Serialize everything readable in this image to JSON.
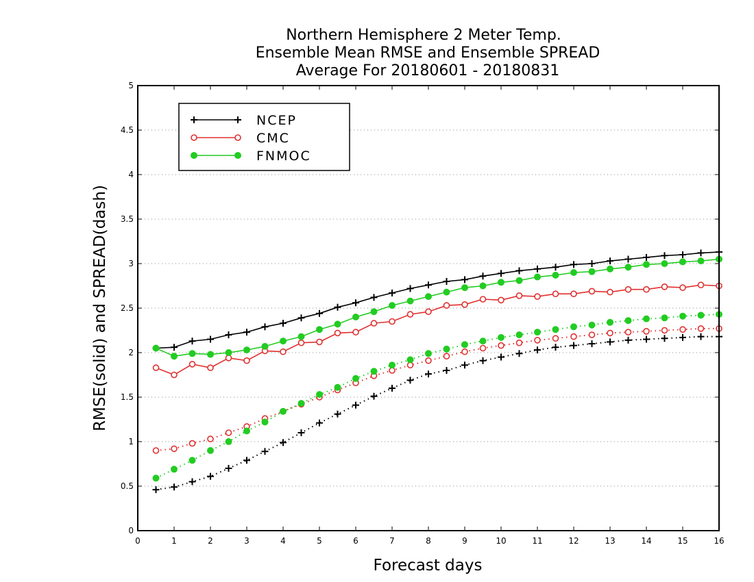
{
  "chart_data": {
    "type": "line",
    "title_lines": [
      "Northern Hemisphere 2 Meter Temp.",
      "Ensemble Mean RMSE and Ensemble SPREAD",
      "Average For 20180601 - 20180831"
    ],
    "xlabel": "Forecast days",
    "ylabel": "RMSE(solid) and SPREAD(dash)",
    "xlim": [
      0,
      16
    ],
    "ylim": [
      0,
      5
    ],
    "x_ticks": [
      0,
      1,
      2,
      3,
      4,
      5,
      6,
      7,
      8,
      9,
      10,
      11,
      12,
      13,
      14,
      15,
      16
    ],
    "y_ticks": [
      0,
      0.5,
      1,
      1.5,
      2,
      2.5,
      3,
      3.5,
      4,
      4.5,
      5
    ],
    "y_tick_labels": [
      "0",
      "0.5",
      "1",
      "1.5",
      "2",
      "2.5",
      "3",
      "3.5",
      "4",
      "4.5",
      "5"
    ],
    "grid": "horizontal dotted",
    "legend_position": "top-left",
    "x": [
      0.5,
      1,
      1.5,
      2,
      2.5,
      3,
      3.5,
      4,
      4.5,
      5,
      5.5,
      6,
      6.5,
      7,
      7.5,
      8,
      8.5,
      9,
      9.5,
      10,
      10.5,
      11,
      11.5,
      12,
      12.5,
      13,
      13.5,
      14,
      14.5,
      15,
      15.5,
      16
    ],
    "series": [
      {
        "name": "NCEP",
        "color": "#000000",
        "marker": "plus",
        "rmse": [
          2.05,
          2.06,
          2.13,
          2.15,
          2.2,
          2.23,
          2.29,
          2.33,
          2.39,
          2.44,
          2.51,
          2.56,
          2.62,
          2.67,
          2.72,
          2.76,
          2.8,
          2.82,
          2.86,
          2.89,
          2.92,
          2.94,
          2.96,
          2.99,
          3.0,
          3.03,
          3.05,
          3.07,
          3.09,
          3.1,
          3.12,
          3.13
        ],
        "spread": [
          0.46,
          0.49,
          0.55,
          0.61,
          0.7,
          0.79,
          0.89,
          0.99,
          1.1,
          1.21,
          1.31,
          1.41,
          1.51,
          1.6,
          1.69,
          1.76,
          1.8,
          1.86,
          1.91,
          1.95,
          1.99,
          2.03,
          2.06,
          2.08,
          2.1,
          2.12,
          2.14,
          2.15,
          2.16,
          2.17,
          2.18,
          2.18
        ]
      },
      {
        "name": "CMC",
        "color": "#e03030",
        "marker": "open-circle",
        "rmse": [
          1.83,
          1.75,
          1.87,
          1.83,
          1.94,
          1.91,
          2.02,
          2.01,
          2.11,
          2.12,
          2.22,
          2.23,
          2.33,
          2.35,
          2.43,
          2.46,
          2.53,
          2.54,
          2.6,
          2.59,
          2.64,
          2.63,
          2.66,
          2.66,
          2.69,
          2.68,
          2.71,
          2.71,
          2.74,
          2.73,
          2.76,
          2.75
        ],
        "spread": [
          0.9,
          0.92,
          0.98,
          1.03,
          1.1,
          1.17,
          1.26,
          1.34,
          1.42,
          1.5,
          1.58,
          1.66,
          1.74,
          1.8,
          1.86,
          1.91,
          1.96,
          2.01,
          2.05,
          2.08,
          2.11,
          2.14,
          2.16,
          2.18,
          2.2,
          2.22,
          2.23,
          2.24,
          2.25,
          2.26,
          2.27,
          2.27
        ]
      },
      {
        "name": "FNMOC",
        "color": "#22cc22",
        "marker": "filled-circle",
        "rmse": [
          2.05,
          1.96,
          1.99,
          1.98,
          2.0,
          2.03,
          2.07,
          2.13,
          2.18,
          2.26,
          2.32,
          2.4,
          2.46,
          2.53,
          2.58,
          2.63,
          2.68,
          2.73,
          2.75,
          2.79,
          2.81,
          2.85,
          2.87,
          2.9,
          2.91,
          2.94,
          2.96,
          2.99,
          3.0,
          3.02,
          3.03,
          3.05
        ],
        "spread": [
          0.59,
          0.69,
          0.79,
          0.9,
          1.0,
          1.12,
          1.22,
          1.34,
          1.43,
          1.53,
          1.61,
          1.71,
          1.79,
          1.86,
          1.92,
          1.99,
          2.04,
          2.09,
          2.13,
          2.17,
          2.2,
          2.23,
          2.26,
          2.29,
          2.31,
          2.34,
          2.36,
          2.38,
          2.39,
          2.41,
          2.42,
          2.43
        ]
      }
    ]
  }
}
